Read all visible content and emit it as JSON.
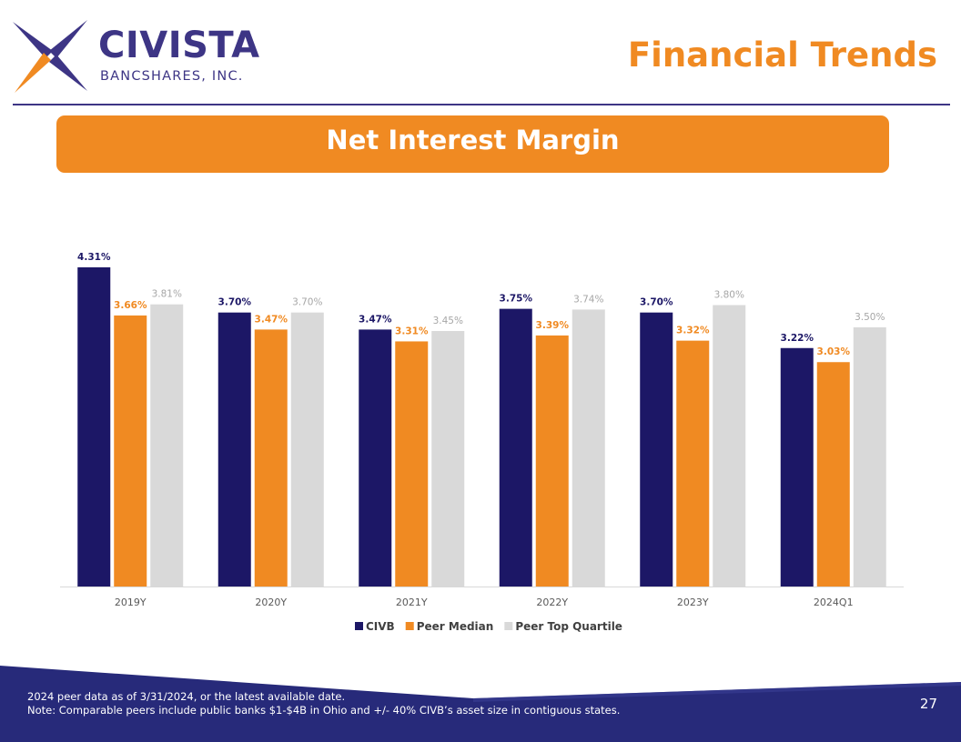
{
  "header": {
    "brand_name": "CIVISTA",
    "brand_sub": "BANCSHARES, INC.",
    "page_title": "Financial Trends",
    "logo_icon": "civista-star-logo-icon"
  },
  "banner": {
    "title": "Net Interest Margin"
  },
  "colors": {
    "navy": "#1c1766",
    "orange": "#f08a22",
    "gray": "#d9d9d9",
    "gray_label": "#a6a6a6",
    "brand_purple": "#3d3585",
    "footer_blue": "#272a7a"
  },
  "chart_data": {
    "type": "bar",
    "categories": [
      "2019Y",
      "2020Y",
      "2021Y",
      "2022Y",
      "2023Y",
      "2024Q1"
    ],
    "series": [
      {
        "name": "CIVB",
        "values": [
          4.31,
          3.7,
          3.47,
          3.75,
          3.7,
          3.22
        ],
        "labels": [
          "4.31%",
          "3.70%",
          "3.47%",
          "3.75%",
          "3.70%",
          "3.22%"
        ],
        "color": "#1c1766",
        "label_color": "#1c1766"
      },
      {
        "name": "Peer Median",
        "values": [
          3.66,
          3.47,
          3.31,
          3.39,
          3.32,
          3.03
        ],
        "labels": [
          "3.66%",
          "3.47%",
          "3.31%",
          "3.39%",
          "3.32%",
          "3.03%"
        ],
        "color": "#f08a22",
        "label_color": "#f08a22"
      },
      {
        "name": "Peer Top Quartile",
        "values": [
          3.81,
          3.7,
          3.45,
          3.74,
          3.8,
          3.5
        ],
        "labels": [
          "3.81%",
          "3.70%",
          "3.45%",
          "3.74%",
          "3.80%",
          "3.50%"
        ],
        "color": "#d9d9d9",
        "label_color": "#a6a6a6"
      }
    ],
    "title": "",
    "xlabel": "",
    "ylabel": "",
    "ylim": [
      0,
      4.31
    ],
    "grid": false,
    "legend": "bottom"
  },
  "footer": {
    "note1": "2024 peer data as of  3/31/2024, or the latest available date.",
    "note2": "Note: Comparable peers include public banks $1-$4B in Ohio and +/- 40% CIVB’s asset size in contiguous states.",
    "page_number": "27"
  }
}
